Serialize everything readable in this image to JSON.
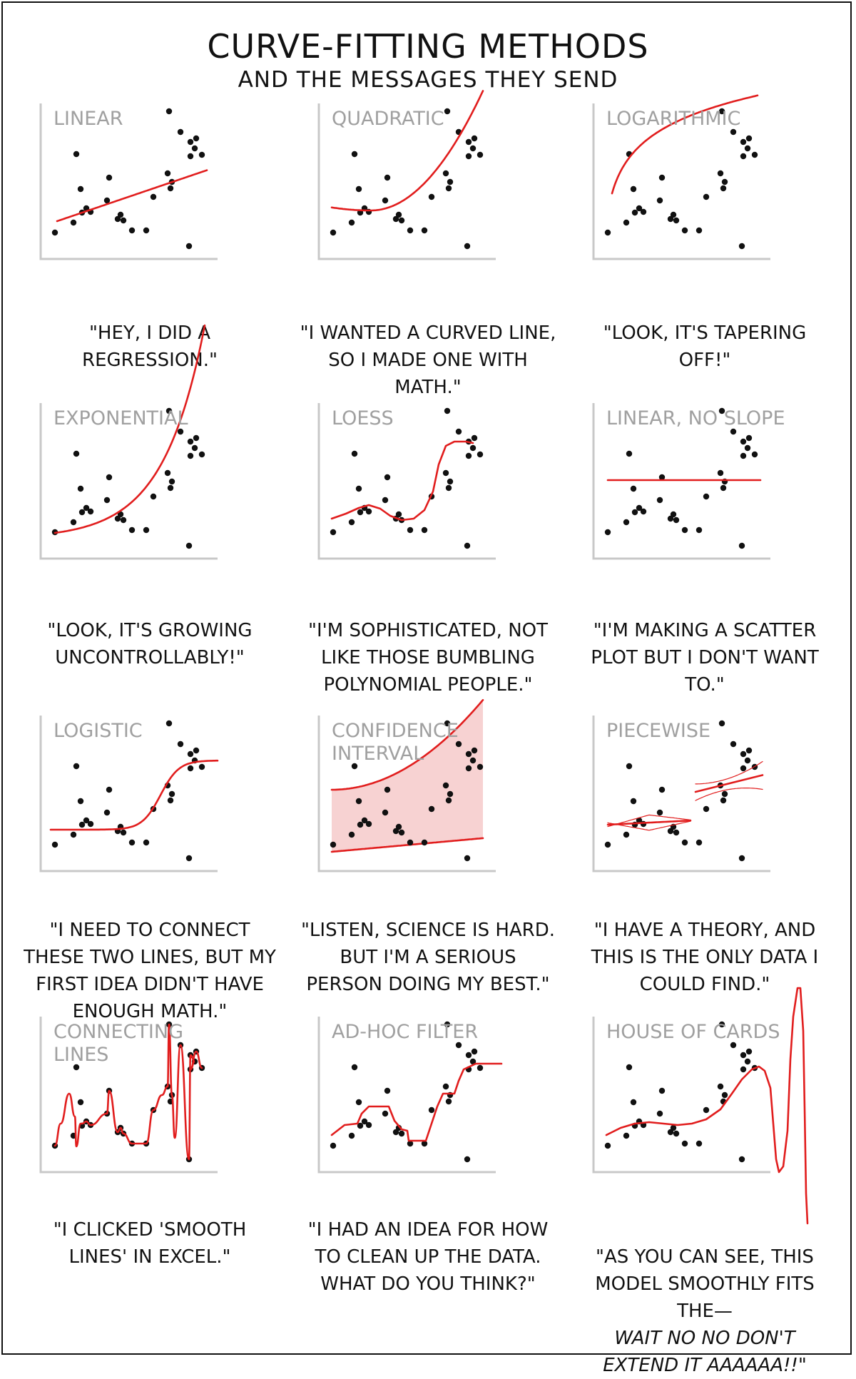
{
  "title": "CURVE-FITTING METHODS",
  "subtitle": "AND THE MESSAGES THEY SEND",
  "colors": {
    "fit": "#e11d1d",
    "band": "#f7d2d2",
    "axis": "#c8c8c8",
    "label": "#a0a0a0",
    "dot": "#111111"
  },
  "panels": [
    {
      "label": "LINEAR",
      "caption": "\"HEY, I DID A REGRESSION.\""
    },
    {
      "label": "QUADRATIC",
      "caption": "\"I WANTED A CURVED LINE, SO I MADE ONE WITH MATH.\""
    },
    {
      "label": "LOGARITHMIC",
      "caption": "\"LOOK, IT'S TAPERING OFF!\""
    },
    {
      "label": "EXPONENTIAL",
      "caption": "\"LOOK, IT'S GROWING UNCONTROLLABLY!\""
    },
    {
      "label": "LOESS",
      "caption": "\"I'M SOPHISTICATED, NOT LIKE THOSE BUMBLING POLYNOMIAL PEOPLE.\""
    },
    {
      "label": "LINEAR, NO SLOPE",
      "caption": "\"I'M MAKING A SCATTER PLOT BUT I DON'T WANT TO.\""
    },
    {
      "label": "LOGISTIC",
      "caption": "\"I NEED TO CONNECT THESE TWO LINES, BUT MY FIRST IDEA DIDN'T HAVE ENOUGH MATH.\""
    },
    {
      "label": "CONFIDENCE INTERVAL",
      "caption": "\"LISTEN, SCIENCE IS HARD. BUT I'M A SERIOUS PERSON DOING MY BEST.\""
    },
    {
      "label": "PIECEWISE",
      "caption": "\"I HAVE A THEORY, AND THIS IS THE ONLY DATA I COULD FIND.\""
    },
    {
      "label": "CONNECTING LINES",
      "caption": "\"I CLICKED 'SMOOTH LINES' IN EXCEL.\""
    },
    {
      "label": "AD-HOC FILTER",
      "caption": "\"I HAD AN IDEA FOR HOW TO CLEAN UP THE DATA. WHAT DO YOU THINK?\""
    },
    {
      "label": "HOUSE OF CARDS",
      "caption_main": "\"AS YOU CAN SEE, THIS MODEL SMOOTHLY FITS THE—",
      "caption_italic": "WAIT NO NO DON'T EXTEND IT AAAAAA!!\""
    }
  ]
}
